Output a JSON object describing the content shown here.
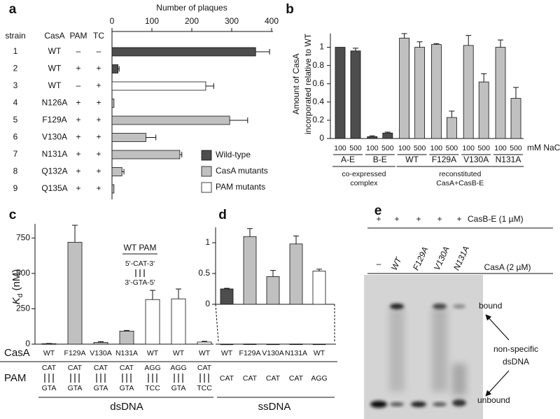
{
  "chart_data": [
    {
      "type": "bar",
      "orientation": "horizontal",
      "panel": "a",
      "xlabel": "Number of plaques",
      "xlim": [
        0,
        400
      ],
      "xticks": [
        0,
        100,
        200,
        300,
        400
      ],
      "columns": [
        "strain",
        "CasA",
        "PAM",
        "TC"
      ],
      "rows": [
        [
          "1",
          "WT",
          "–",
          "–"
        ],
        [
          "2",
          "WT",
          "+",
          "+"
        ],
        [
          "3",
          "WT",
          "–",
          "+"
        ],
        [
          "4",
          "N126A",
          "+",
          "+"
        ],
        [
          "5",
          "F129A",
          "+",
          "+"
        ],
        [
          "6",
          "V130A",
          "+",
          "+"
        ],
        [
          "7",
          "N131A",
          "+",
          "+"
        ],
        [
          "8",
          "Q132A",
          "+",
          "+"
        ],
        [
          "9",
          "Q135A",
          "+",
          "+"
        ]
      ],
      "series": [
        {
          "name": "Wild-type",
          "color": "#4d4d4d",
          "values": [
            360,
            15,
            null,
            null,
            null,
            null,
            null,
            null,
            null
          ],
          "errors": [
            35,
            3,
            null,
            null,
            null,
            null,
            null,
            null,
            null
          ]
        },
        {
          "name": "CasA mutants",
          "color": "#c0c0c0",
          "values": [
            null,
            null,
            null,
            5,
            295,
            85,
            170,
            25,
            5
          ],
          "errors": [
            null,
            null,
            null,
            null,
            45,
            25,
            5,
            5,
            null
          ]
        },
        {
          "name": "PAM mutants",
          "color": "#ffffff",
          "values": [
            null,
            null,
            235,
            null,
            null,
            null,
            null,
            null,
            null
          ],
          "errors": [
            null,
            null,
            20,
            null,
            null,
            null,
            null,
            null,
            null
          ]
        }
      ]
    },
    {
      "type": "bar",
      "orientation": "vertical",
      "panel": "b",
      "ylabel": [
        "Amount of CasA",
        "incorporated relative to WT"
      ],
      "ylim": [
        0,
        1.15
      ],
      "yticks": [
        0,
        0.2,
        0.4,
        0.6,
        0.8,
        1
      ],
      "categories": [
        "100",
        "500",
        "100",
        "500",
        "100",
        "500",
        "100",
        "500",
        "100",
        "500",
        "100",
        "500"
      ],
      "values": [
        1,
        0.96,
        0.02,
        0.06,
        1.1,
        1.0,
        1.03,
        0.23,
        1.02,
        0.62,
        1.0,
        0.44
      ],
      "errors": [
        null,
        0.03,
        0.01,
        0.01,
        0.05,
        0.06,
        0.01,
        0.07,
        0.11,
        0.09,
        0.08,
        0.12
      ],
      "colors": [
        "#4d4d4d",
        "#4d4d4d",
        "#4d4d4d",
        "#4d4d4d",
        "#c0c0c0",
        "#c0c0c0",
        "#c0c0c0",
        "#c0c0c0",
        "#c0c0c0",
        "#c0c0c0",
        "#c0c0c0",
        "#c0c0c0"
      ],
      "groups": [
        "A-E",
        "B-E",
        "WT",
        "F129A",
        "V130A",
        "N131A"
      ],
      "brackets": [
        [
          "co-expressed",
          "complex"
        ],
        [
          "reconstituted",
          "CasA+CasB-E"
        ]
      ],
      "unit_label": "mM NaCl"
    },
    {
      "type": "bar",
      "orientation": "vertical",
      "panel": "c",
      "ylabel": [
        "K",
        "d",
        " (nM)"
      ],
      "ylim": [
        0,
        850
      ],
      "yticks": [
        0,
        250,
        500,
        750
      ],
      "row_labels": [
        "CasA",
        "PAM"
      ],
      "categories": [
        "WT",
        "F129A",
        "V130A",
        "N131A",
        "WT",
        "WT",
        "WT"
      ],
      "values": [
        3,
        720,
        12,
        92,
        315,
        320,
        15
      ],
      "errors": [
        2,
        120,
        5,
        5,
        65,
        70,
        5
      ],
      "colors": [
        "#ffffff",
        "#c0c0c0",
        "#c0c0c0",
        "#c0c0c0",
        "#ffffff",
        "#ffffff",
        "#ffffff"
      ],
      "pam_top": [
        "CAT",
        "CAT",
        "CAT",
        "CAT",
        "AGG",
        "AGG",
        "CAT"
      ],
      "pam_bottom": [
        "GTA",
        "GTA",
        "GTA",
        "GTA",
        "TCC",
        "GTA",
        "TCC"
      ],
      "highlight": [
        "AGG",
        "TCC"
      ],
      "highlight_color": "#e0201b",
      "xlabel": "dsDNA",
      "inset": [
        "WT PAM",
        "5'-CAT-3'",
        "3'-GTA-5'"
      ]
    },
    {
      "type": "bar",
      "orientation": "vertical",
      "panel": "d",
      "ylim": [
        0,
        1.25
      ],
      "yticks": [
        0,
        0.5,
        1
      ],
      "categories": [
        "WT",
        "F129A",
        "V130A",
        "N131A",
        "WT"
      ],
      "values": [
        0.25,
        1.1,
        0.45,
        0.98,
        0.54
      ],
      "errors": [
        0.01,
        0.13,
        0.1,
        0.13,
        0.03
      ],
      "colors": [
        "#4d4d4d",
        "#c0c0c0",
        "#c0c0c0",
        "#c0c0c0",
        "#ffffff"
      ],
      "pam": [
        "CAT",
        "CAT",
        "CAT",
        "CAT",
        "AGG"
      ],
      "xlabel": "ssDNA"
    }
  ],
  "gel": {
    "panel": "e",
    "top": [
      "+",
      "+",
      "+",
      "+",
      "+"
    ],
    "top_label": "CasB-E (1 µM)",
    "lanes": [
      "–",
      "WT",
      "F129A",
      "V130A",
      "N131A"
    ],
    "lane_label": "CasA (2 µM)",
    "bound": "bound",
    "nonspecific": [
      "non-specific",
      "dsDNA"
    ],
    "unbound": "unbound"
  }
}
